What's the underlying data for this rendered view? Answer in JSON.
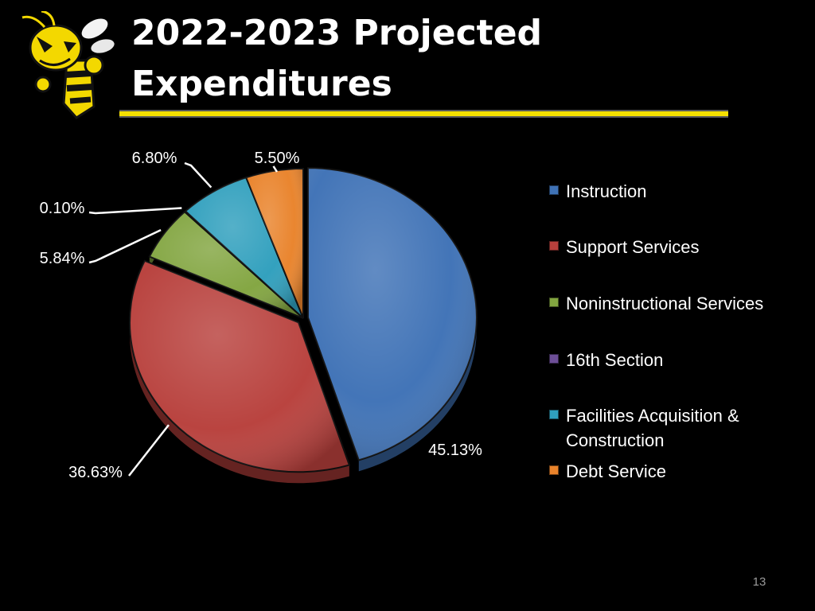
{
  "slide": {
    "title": "2022-2023 Projected Expenditures",
    "page_number": "13"
  },
  "logo": {
    "icon": "yellow-jacket-mascot-icon"
  },
  "colors": {
    "background": "#000000",
    "title_text": "#ffffff",
    "title_rule": "#f5e000",
    "label_text": "#ffffff"
  },
  "chart_data": {
    "type": "pie",
    "title": "",
    "categories": [
      "Instruction",
      "Support Services",
      "Noninstructional Services",
      "16th Section",
      "Facilities Acquisition & Construction",
      "Debt Service"
    ],
    "values": [
      45.13,
      36.63,
      5.84,
      0.1,
      6.8,
      5.5
    ],
    "data_labels": [
      "45.13%",
      "36.63%",
      "5.84%",
      "0.10%",
      "6.80%",
      "5.50%"
    ],
    "colors": [
      "#3f72b6",
      "#b8403c",
      "#82a540",
      "#6d4f97",
      "#2f9fbd",
      "#e9832b"
    ],
    "legend_position": "right",
    "start_angle": "12 o'clock",
    "direction": "clockwise"
  }
}
